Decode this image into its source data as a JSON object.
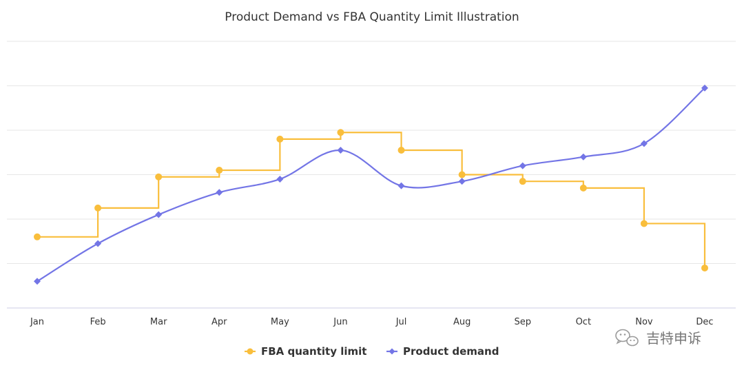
{
  "chart_data": {
    "type": "line",
    "title": "Product Demand vs FBA Quantity Limit Illustration",
    "xlabel": "",
    "ylabel": "",
    "categories": [
      "Jan",
      "Feb",
      "Mar",
      "Apr",
      "May",
      "Jun",
      "Jul",
      "Aug",
      "Sep",
      "Oct",
      "Nov",
      "Dec"
    ],
    "ylim": [
      0,
      6
    ],
    "grid": true,
    "legend_position": "bottom-center",
    "series": [
      {
        "name": "FBA quantity limit",
        "style": "step-before",
        "marker": "circle",
        "color": "#F9BE3C",
        "values": [
          1.6,
          2.25,
          2.95,
          3.1,
          3.8,
          3.95,
          3.55,
          3.0,
          2.85,
          2.7,
          1.9,
          0.9
        ]
      },
      {
        "name": "Product demand",
        "style": "smooth",
        "marker": "diamond",
        "color": "#7375E6",
        "values": [
          0.6,
          1.45,
          2.1,
          2.6,
          2.9,
          3.55,
          2.75,
          2.85,
          3.2,
          3.4,
          3.7,
          4.95
        ]
      }
    ]
  },
  "watermark": {
    "text": "吉特申诉",
    "icon": "wechat-icon"
  }
}
